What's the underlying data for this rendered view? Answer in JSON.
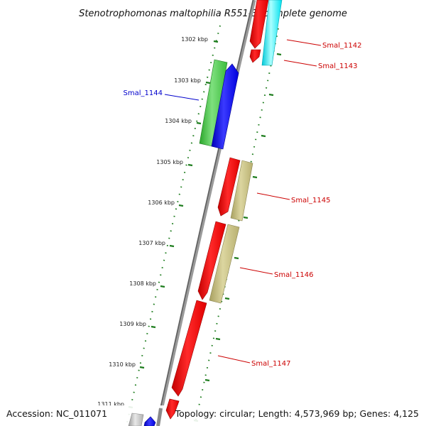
{
  "title": "Stenotrophomonas maltophilia R551-3, complete genome",
  "footer": {
    "accession": "Accession: NC_011071",
    "summary": "Topology: circular; Length: 4,573,969 bp; Genes: 4,125"
  },
  "colors": {
    "backbone": "#7a7a7a",
    "tick": "#1e7d1e",
    "label_red": "#cc0000",
    "label_blue": "#0000cc"
  },
  "ticks": [
    "1302 kbp",
    "1303 kbp",
    "1304 kbp",
    "1305 kbp",
    "1306 kbp",
    "1307 kbp",
    "1308 kbp",
    "1309 kbp",
    "1310 kbp",
    "1311 kbp"
  ],
  "genes": [
    {
      "label": "Smal_1142",
      "color": "red"
    },
    {
      "label": "Smal_1143",
      "color": "red"
    },
    {
      "label": "Smal_1144",
      "color": "blue"
    },
    {
      "label": "Smal_1145",
      "color": "red"
    },
    {
      "label": "Smal_1146",
      "color": "red"
    },
    {
      "label": "Smal_1147",
      "color": "red"
    }
  ]
}
